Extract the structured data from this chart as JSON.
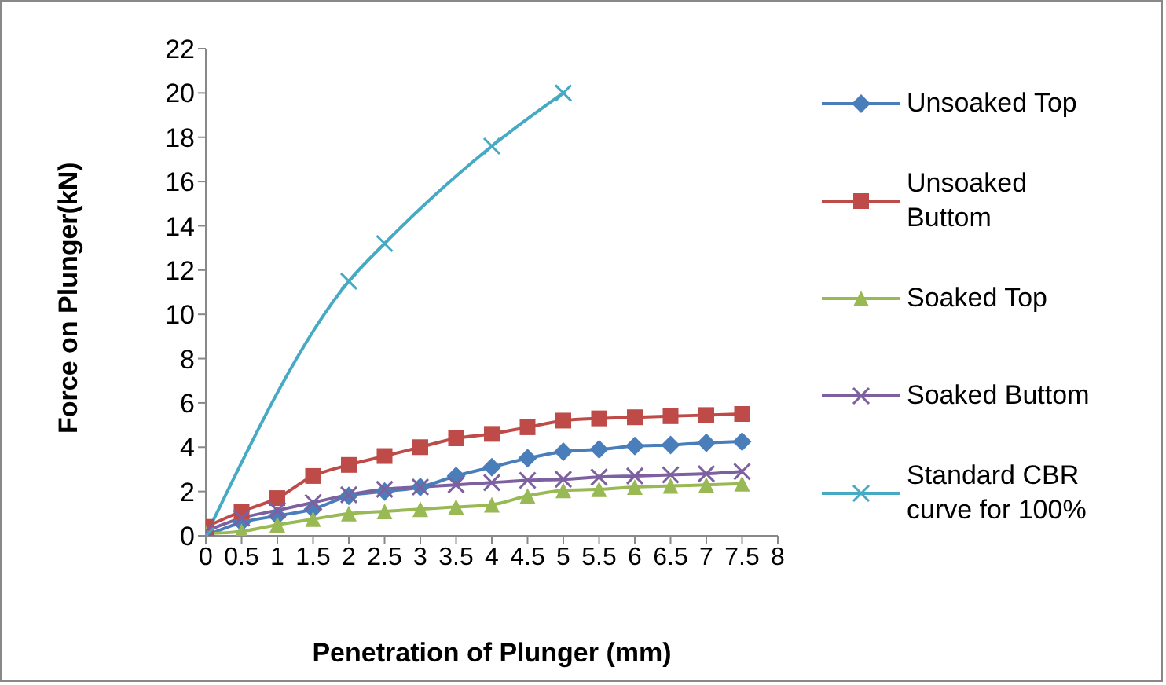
{
  "chart_data": {
    "type": "line",
    "xlabel": "Penetration of Plunger (mm)",
    "ylabel": "Force on Plunger(kN)",
    "xlim": [
      0,
      8
    ],
    "xticks": [
      0,
      0.5,
      1,
      1.5,
      2,
      2.5,
      3,
      3.5,
      4,
      4.5,
      5,
      5.5,
      6,
      6.5,
      7,
      7.5,
      8
    ],
    "ylim": [
      0,
      22
    ],
    "yticks": [
      0,
      2,
      4,
      6,
      8,
      10,
      12,
      14,
      16,
      18,
      20,
      22
    ],
    "x": [
      0,
      0.5,
      1,
      1.5,
      2,
      2.5,
      3,
      3.5,
      4,
      4.5,
      5,
      5.5,
      6,
      6.5,
      7,
      7.5
    ],
    "legend": "right",
    "line_style": "solid",
    "series": [
      {
        "name": "Unsoaked Top",
        "color": "#4a7ebb",
        "marker": "diamond",
        "values": [
          0,
          0.6,
          0.9,
          1.2,
          1.8,
          2.0,
          2.2,
          2.7,
          3.1,
          3.5,
          3.8,
          3.9,
          4.05,
          4.1,
          4.2,
          4.25
        ]
      },
      {
        "name": "Unsoaked Buttom",
        "color": "#be4b48",
        "marker": "square",
        "values": [
          0.4,
          1.1,
          1.7,
          2.7,
          3.2,
          3.6,
          4.0,
          4.4,
          4.6,
          4.9,
          5.2,
          5.3,
          5.35,
          5.4,
          5.45,
          5.5
        ]
      },
      {
        "name": "Soaked Top",
        "color": "#98b954",
        "marker": "triangle",
        "values": [
          0.1,
          0.2,
          0.5,
          0.75,
          1.0,
          1.1,
          1.2,
          1.3,
          1.4,
          1.8,
          2.05,
          2.1,
          2.2,
          2.25,
          2.3,
          2.35
        ]
      },
      {
        "name": "Soaked Buttom",
        "color": "#7d60a0",
        "marker": "cross",
        "values": [
          0.2,
          0.8,
          1.15,
          1.5,
          1.85,
          2.1,
          2.2,
          2.3,
          2.4,
          2.5,
          2.55,
          2.65,
          2.7,
          2.75,
          2.8,
          2.9
        ]
      },
      {
        "name": "Standard CBR curve for 100%",
        "color": "#46aac5",
        "marker": "cross",
        "x": [
          0,
          2,
          2.5,
          4,
          5
        ],
        "values": [
          0,
          11.5,
          13.2,
          17.6,
          20
        ]
      }
    ]
  }
}
